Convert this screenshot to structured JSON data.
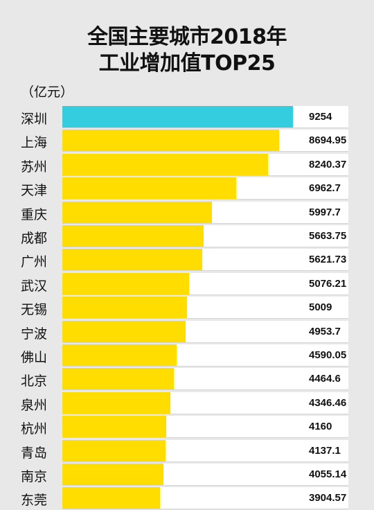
{
  "chart_data": {
    "type": "bar",
    "orientation": "horizontal",
    "title": "全国主要城市2018年",
    "subtitle": "工业增加值TOP25",
    "unit_label": "（亿元）",
    "categories": [
      "深圳",
      "上海",
      "苏州",
      "天津",
      "重庆",
      "成都",
      "广州",
      "武汉",
      "无锡",
      "宁波",
      "佛山",
      "北京",
      "泉州",
      "杭州",
      "青岛",
      "南京",
      "东莞"
    ],
    "values": [
      9254,
      8694.95,
      8240.37,
      6962.7,
      5997.7,
      5663.75,
      5621.73,
      5076.21,
      5009,
      4953.7,
      4590.05,
      4464.6,
      4346.46,
      4160,
      4137.1,
      4055.14,
      3904.57
    ],
    "value_labels": [
      "9254",
      "8694.95",
      "8240.37",
      "6962.7",
      "5997.7",
      "5663.75",
      "5621.73",
      "5076.21",
      "5009",
      "4953.7",
      "4590.05",
      "4464.6",
      "4346.46",
      "4160",
      "4137.1",
      "4055.14",
      "3904.57"
    ],
    "highlight_index": 0,
    "colors": {
      "highlight": "#34cde0",
      "bar": "#ffdd00",
      "track": "#ffffff",
      "background": "#e8e8e8"
    },
    "xlim": [
      0,
      10000
    ],
    "grid": false,
    "legend": "none"
  }
}
